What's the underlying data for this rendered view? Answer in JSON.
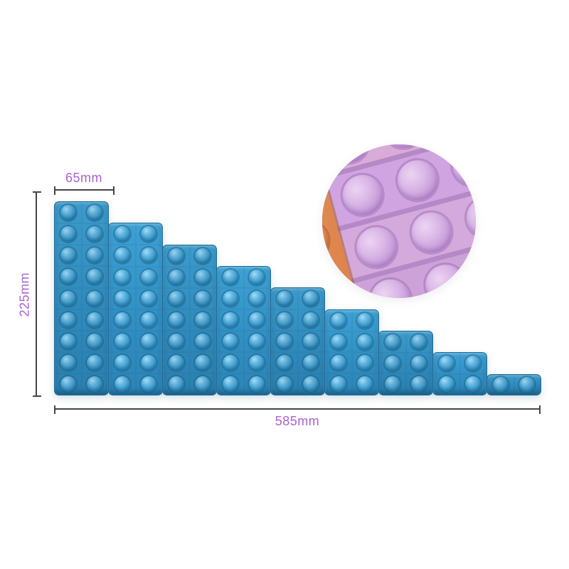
{
  "annotations": {
    "top_width": "65mm",
    "left_height": "225mm",
    "bottom_width": "585mm"
  },
  "colors": {
    "dimension_text": "#aa63cf",
    "dimension_line": "#454545",
    "toy_blue": "#2f8abb",
    "toy_blue_dark": "#1c6b97",
    "toy_blue_light": "#9ed3ec",
    "inset_lavender": "#d0a9de",
    "inset_pink": "#d9abd9",
    "inset_orange": "#db8049",
    "inset_yellow": "#e8a93f",
    "background": "#ffffff"
  },
  "staircase": {
    "columns": 9,
    "max_rows": 9,
    "bubbles_per_row": 2
  },
  "inset": {
    "rows": 4,
    "bubbles_per_row": 4,
    "row_colors": [
      "#d9abd9",
      "#d0a4e0",
      "#d4a9dc",
      "#cda2d8"
    ]
  }
}
